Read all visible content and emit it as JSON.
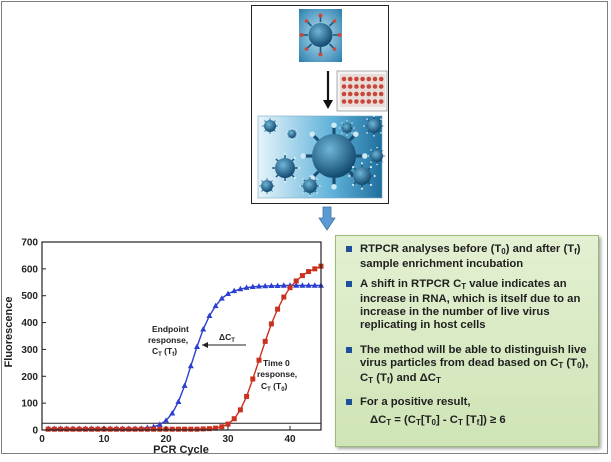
{
  "colors": {
    "blue_series": "#2b3fd0",
    "red_series": "#c8321e",
    "panel_green": "#d6e8c0",
    "bullet_blue": "#1f4e9a",
    "arrow_blue": "#5b9bd5"
  },
  "icons": {
    "virus_top": "virus-icon",
    "plate": "well-plate-icon",
    "virus_banner": "virus-cluster-icon"
  },
  "chart_data": {
    "type": "scatter",
    "xlabel": "PCR Cycle",
    "ylabel": "Fluorescence",
    "xlim": [
      0,
      45
    ],
    "ylim": [
      0,
      700
    ],
    "xticks": [
      "0",
      "10",
      "20",
      "30",
      "40"
    ],
    "yticks": [
      "0",
      "100",
      "200",
      "300",
      "400",
      "500",
      "600",
      "700"
    ],
    "threshold": 25,
    "series": [
      {
        "color": "#2b3fd0",
        "marker": "triangle",
        "x": [
          1,
          2,
          3,
          4,
          5,
          6,
          7,
          8,
          9,
          10,
          11,
          12,
          13,
          14,
          15,
          16,
          17,
          18,
          19,
          20,
          21,
          22,
          23,
          24,
          25,
          26,
          27,
          28,
          29,
          30,
          31,
          32,
          33,
          34,
          35,
          36,
          37,
          38,
          39,
          40,
          41,
          42,
          43,
          44,
          45
        ],
        "y": [
          5,
          5,
          5,
          5,
          5,
          5,
          5,
          5,
          5,
          5,
          5,
          5,
          5,
          5,
          5,
          6,
          8,
          12,
          20,
          35,
          62,
          105,
          165,
          238,
          310,
          375,
          425,
          462,
          490,
          507,
          518,
          525,
          530,
          533,
          535,
          536,
          537,
          537,
          538,
          538,
          538,
          538,
          538,
          538,
          538
        ]
      },
      {
        "color": "#c8321e",
        "marker": "square",
        "x": [
          1,
          2,
          3,
          4,
          5,
          6,
          7,
          8,
          9,
          10,
          11,
          12,
          13,
          14,
          15,
          16,
          17,
          18,
          19,
          20,
          21,
          22,
          23,
          24,
          25,
          26,
          27,
          28,
          29,
          30,
          31,
          32,
          33,
          34,
          35,
          36,
          37,
          38,
          39,
          40,
          41,
          42,
          43,
          44,
          45
        ],
        "y": [
          3,
          3,
          3,
          3,
          3,
          3,
          3,
          3,
          3,
          3,
          3,
          3,
          3,
          3,
          3,
          3,
          3,
          3,
          3,
          3,
          3,
          3,
          3,
          3,
          3,
          4,
          5,
          7,
          12,
          22,
          42,
          75,
          125,
          190,
          260,
          330,
          395,
          450,
          495,
          530,
          555,
          575,
          590,
          600,
          610
        ]
      }
    ],
    "annotations": {
      "endpoint": [
        "Endpoint",
        "response,",
        "C",
        "T",
        " (T",
        "f",
        ")"
      ],
      "time0": [
        "Time 0",
        "response,",
        "C",
        "T",
        " (T",
        "0",
        ")"
      ],
      "delta": [
        "Δ",
        "C",
        "T"
      ]
    }
  },
  "panel": {
    "b1": [
      "RTPCR analyses before (T",
      "0",
      ") and after (T",
      "f",
      ") sample enrichment incubation"
    ],
    "b2": [
      "A shift in RTPCR C",
      "T",
      " value indicates an increase in RNA, which is itself due to an increase in the number of live virus replicating in host cells"
    ],
    "b3": [
      "The method will be able to distinguish live virus particles from dead based on C",
      "T",
      " (T",
      "0",
      "), C",
      "T",
      " (T",
      "f",
      ") and ΔC",
      "T"
    ],
    "b4": "For a positive result,",
    "formula": [
      "ΔC",
      "T",
      " = (C",
      "T",
      "[T",
      "0",
      "] - C",
      "T",
      " [T",
      "f",
      "]) ≥ 6"
    ]
  }
}
